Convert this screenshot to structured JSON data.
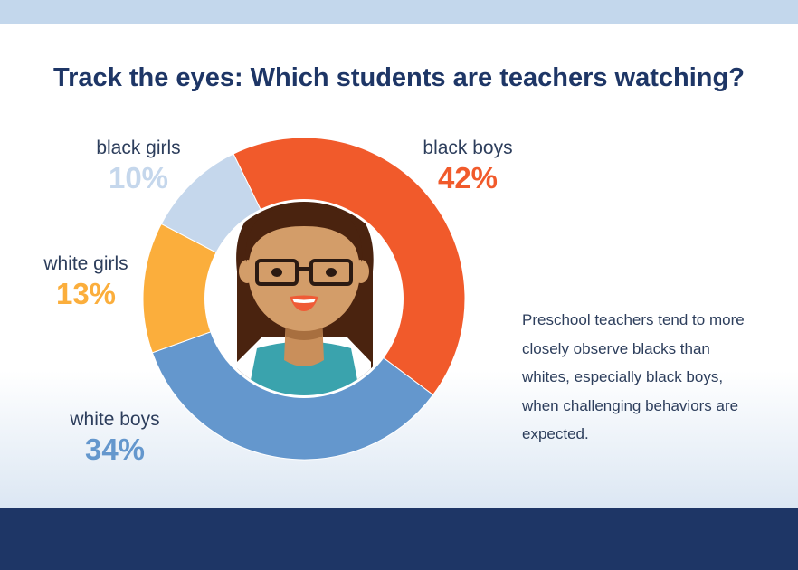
{
  "title": "Track the eyes: Which students are teachers watching?",
  "caption": "Preschool teachers tend to more closely observe blacks than whites, especially black boys, when challenging behaviors are expected.",
  "chart_data": {
    "type": "pie",
    "title": "Track the eyes: Which students are teachers watching?",
    "series": [
      {
        "name": "black boys",
        "label": "42%",
        "value": 42,
        "color": "#f15a2b"
      },
      {
        "name": "white boys",
        "label": "34%",
        "value": 34,
        "color": "#6497cd"
      },
      {
        "name": "white girls",
        "label": "13%",
        "value": 13,
        "color": "#fbae3c"
      },
      {
        "name": "black girls",
        "label": "10%",
        "value": 10,
        "color": "#c5d7ec"
      }
    ]
  },
  "colors": {
    "navy": "#1e3666",
    "top_band": "#c3d7ec",
    "text": "#2d3e5c"
  },
  "illustration": {
    "icon": "teacher-with-glasses-icon"
  }
}
